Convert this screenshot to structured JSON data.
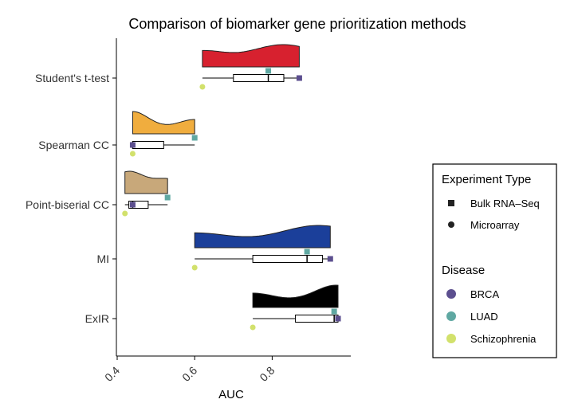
{
  "chart_data": {
    "type": "raincloud",
    "title": "Comparison of biomarker gene prioritization methods",
    "xlabel": "AUC",
    "ylabel": "",
    "xlim": [
      0.39,
      0.98
    ],
    "xticks": [
      0.4,
      0.6,
      0.8
    ],
    "xtick_labels": [
      "0.4",
      "0.6",
      "0.8"
    ],
    "grid": false,
    "legend_position": "right",
    "methods": [
      {
        "name": "Student's t-test",
        "color": "#d7212f",
        "box": {
          "min": 0.62,
          "q1": 0.7,
          "median": 0.79,
          "q3": 0.83,
          "max": 0.87
        },
        "points": [
          {
            "disease": "BRCA",
            "type": "Bulk RNA-Seq",
            "auc": 0.87
          },
          {
            "disease": "LUAD",
            "type": "Bulk RNA-Seq",
            "auc": 0.79
          },
          {
            "disease": "Schizophrenia",
            "type": "Microarray",
            "auc": 0.62
          }
        ]
      },
      {
        "name": "Spearman CC",
        "color": "#f0ad3e",
        "box": {
          "min": 0.44,
          "q1": 0.44,
          "median": 0.44,
          "q3": 0.52,
          "max": 0.6
        },
        "points": [
          {
            "disease": "BRCA",
            "type": "Bulk RNA-Seq",
            "auc": 0.44
          },
          {
            "disease": "LUAD",
            "type": "Bulk RNA-Seq",
            "auc": 0.6
          },
          {
            "disease": "Schizophrenia",
            "type": "Microarray",
            "auc": 0.44
          }
        ]
      },
      {
        "name": "Point-biserial CC",
        "color": "#c8a87a",
        "box": {
          "min": 0.42,
          "q1": 0.43,
          "median": 0.44,
          "q3": 0.48,
          "max": 0.53
        },
        "points": [
          {
            "disease": "BRCA",
            "type": "Bulk RNA-Seq",
            "auc": 0.44
          },
          {
            "disease": "LUAD",
            "type": "Bulk RNA-Seq",
            "auc": 0.53
          },
          {
            "disease": "Schizophrenia",
            "type": "Microarray",
            "auc": 0.42
          }
        ]
      },
      {
        "name": "MI",
        "color": "#1b3f9a",
        "box": {
          "min": 0.6,
          "q1": 0.75,
          "median": 0.89,
          "q3": 0.93,
          "max": 0.95
        },
        "points": [
          {
            "disease": "BRCA",
            "type": "Bulk RNA-Seq",
            "auc": 0.95
          },
          {
            "disease": "LUAD",
            "type": "Bulk RNA-Seq",
            "auc": 0.89
          },
          {
            "disease": "Schizophrenia",
            "type": "Microarray",
            "auc": 0.6
          }
        ]
      },
      {
        "name": "ExIR",
        "color": "#000000",
        "box": {
          "min": 0.75,
          "q1": 0.86,
          "median": 0.96,
          "q3": 0.97,
          "max": 0.97
        },
        "points": [
          {
            "disease": "BRCA",
            "type": "Bulk RNA-Seq",
            "auc": 0.97
          },
          {
            "disease": "LUAD",
            "type": "Bulk RNA-Seq",
            "auc": 0.96
          },
          {
            "disease": "Schizophrenia",
            "type": "Microarray",
            "auc": 0.75
          }
        ]
      }
    ],
    "legend": {
      "experiment_type": {
        "title": "Experiment Type",
        "items": [
          {
            "label": "Bulk RNA–Seq",
            "shape": "square"
          },
          {
            "label": "Microarray",
            "shape": "circle"
          }
        ]
      },
      "disease": {
        "title": "Disease",
        "items": [
          {
            "label": "BRCA",
            "color": "#5c4f8f"
          },
          {
            "label": "LUAD",
            "color": "#5fa8a2"
          },
          {
            "label": "Schizophrenia",
            "color": "#d2e16c"
          }
        ]
      }
    }
  }
}
